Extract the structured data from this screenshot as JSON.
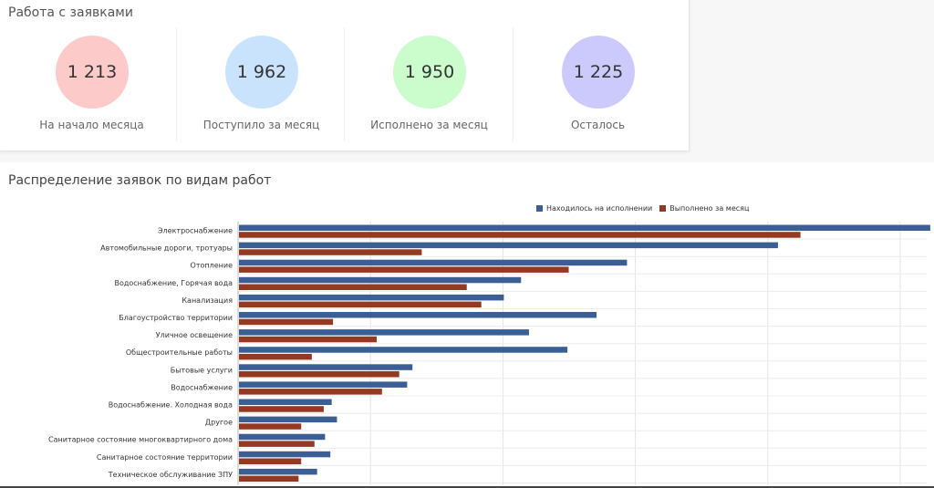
{
  "summary": {
    "title": "Работа с заявками",
    "stats": [
      {
        "value": "1 213",
        "label": "На начало месяца",
        "color": "#fdcaca"
      },
      {
        "value": "1 962",
        "label": "Поступило за месяц",
        "color": "#cae3fc"
      },
      {
        "value": "1 950",
        "label": "Исполнено за месяц",
        "color": "#cafccc"
      },
      {
        "value": "1 225",
        "label": "Осталось",
        "color": "#cccafc"
      }
    ]
  },
  "chart_data": {
    "type": "bar",
    "orientation": "horizontal",
    "title": "Распределение заявок по видам работ",
    "legend_position": "top-right",
    "grid": true,
    "xlim": [
      0,
      520
    ],
    "categories": [
      "Электроснабжение",
      "Автомобильные дороги, тротуары",
      "Отопление",
      "Водоснабжение, Горячая вода",
      "Канализация",
      "Благоустройство территории",
      "Уличное освещение",
      "Общестроительные работы",
      "Бытовые услуги",
      "Водоснабжение",
      "Водоснабжение. Холодная вода",
      "Другое",
      "Санитарное состояние многоквартирного дома",
      "Санитарное состояние территории",
      "Техническое обслуживание ЗПУ"
    ],
    "series": [
      {
        "name": "Находилось на исполнении",
        "color": "#3b5f95",
        "values": [
          522,
          407,
          293,
          213,
          200,
          270,
          219,
          248,
          131,
          127,
          70,
          74,
          65,
          69,
          59
        ]
      },
      {
        "name": "Выполнено за месяц",
        "color": "#953a22",
        "values": [
          424,
          138,
          249,
          172,
          183,
          71,
          104,
          55,
          121,
          108,
          64,
          47,
          57,
          47,
          45
        ]
      }
    ]
  }
}
